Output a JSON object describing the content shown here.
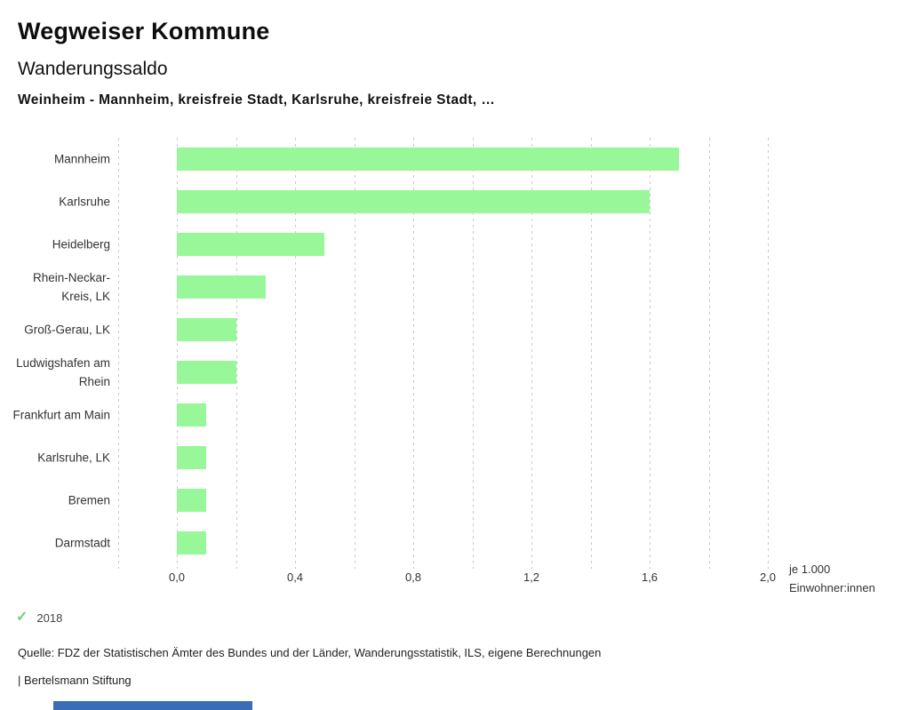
{
  "header": {
    "app_title": "Wegweiser Kommune",
    "chart_title": "Wanderungssaldo",
    "comparison_line": "Weinheim - Mannheim, kreisfreie Stadt, Karlsruhe, kreisfreie Stadt, …"
  },
  "chart_data": {
    "type": "bar",
    "orientation": "horizontal",
    "title": "Wanderungssaldo",
    "categories": [
      "Mannheim",
      "Karlsruhe",
      "Heidelberg",
      "Rhein-Neckar-Kreis, LK",
      "Groß-Gerau, LK",
      "Ludwigshafen am Rhein",
      "Frankfurt am Main",
      "Karlsruhe, LK",
      "Bremen",
      "Darmstadt"
    ],
    "series": [
      {
        "name": "2018",
        "values": [
          1.7,
          1.6,
          0.5,
          0.3,
          0.2,
          0.2,
          0.1,
          0.1,
          0.1,
          0.1
        ]
      }
    ],
    "xlim": [
      -0.2,
      2.0
    ],
    "grid_step": 0.2,
    "grid_style": "dashed-vertical",
    "x_ticks": [
      0.0,
      0.4,
      0.8,
      1.2,
      1.6,
      2.0
    ],
    "x_tick_labels": [
      "0,0",
      "0,4",
      "0,8",
      "1,2",
      "1,6",
      "2,0"
    ],
    "x_unit_lines": [
      "je 1.000",
      "Einwohner:innen"
    ],
    "legend_position": "bottom-left"
  },
  "legend": {
    "check_icon": "✓",
    "year_label": "2018"
  },
  "footer": {
    "source": "Quelle: FDZ der Statistischen Ämter des Bundes und der Länder, Wanderungsstatistik, ILS, eigene Berechnungen",
    "attribution": "| Bertelsmann Stiftung"
  },
  "colors": {
    "bar": "#98f798",
    "grid": "#c9c9c9",
    "legend_check": "#6fd46f",
    "bottom_accent_bar": "#3a6db8",
    "text": "#222222"
  }
}
